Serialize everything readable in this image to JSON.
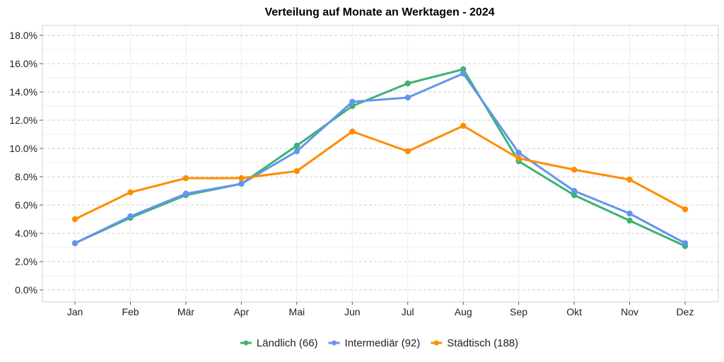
{
  "chart_data": {
    "type": "line",
    "title": "Verteilung auf Monate an Werktagen - 2024",
    "xlabel": "",
    "ylabel": "",
    "categories": [
      "Jan",
      "Feb",
      "Mär",
      "Apr",
      "Mai",
      "Jun",
      "Jul",
      "Aug",
      "Sep",
      "Okt",
      "Nov",
      "Dez"
    ],
    "y_ticks": [
      0,
      2,
      4,
      6,
      8,
      10,
      12,
      14,
      16,
      18
    ],
    "y_tick_labels": [
      "0.0%",
      "2.0%",
      "4.0%",
      "6.0%",
      "8.0%",
      "10.0%",
      "12.0%",
      "14.0%",
      "16.0%",
      "18.0%"
    ],
    "ylim": [
      -0.9,
      18.9
    ],
    "grid": true,
    "legend_position": "bottom",
    "series": [
      {
        "name": "Ländlich (66)",
        "color": "#3cb371",
        "values": [
          3.3,
          5.1,
          6.7,
          7.5,
          10.2,
          13.0,
          14.6,
          15.6,
          9.1,
          6.7,
          4.9,
          3.1
        ]
      },
      {
        "name": "Intermediär (92)",
        "color": "#6495ed",
        "values": [
          3.3,
          5.2,
          6.8,
          7.5,
          9.8,
          13.3,
          13.6,
          15.3,
          9.7,
          7.0,
          5.4,
          3.3
        ]
      },
      {
        "name": "Städtisch (188)",
        "color": "#ff8c00",
        "values": [
          5.0,
          6.9,
          7.9,
          7.9,
          8.4,
          11.2,
          9.8,
          11.6,
          9.3,
          8.5,
          7.8,
          5.7
        ]
      }
    ]
  }
}
